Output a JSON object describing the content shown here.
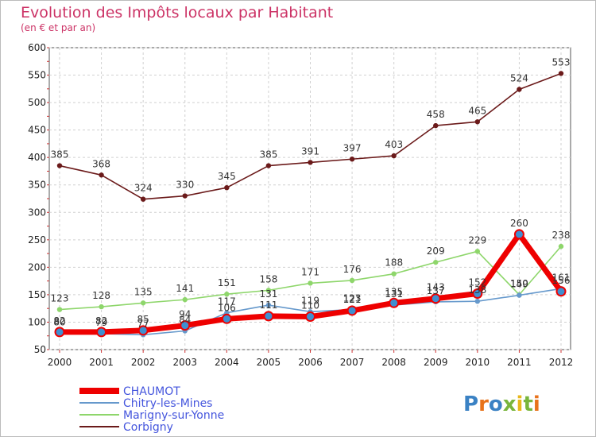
{
  "chart_data": {
    "type": "line",
    "title": "Evolution des Impôts locaux par Habitant",
    "subtitle": "(en € et par an)",
    "xlabel": "",
    "ylabel": "",
    "ylim": [
      50,
      600
    ],
    "yticks": [
      "50",
      "100",
      "150",
      "200",
      "250",
      "300",
      "350",
      "400",
      "450",
      "500",
      "550",
      "600"
    ],
    "categories": [
      "2000",
      "2001",
      "2002",
      "2003",
      "2004",
      "2005",
      "2006",
      "2007",
      "2008",
      "2009",
      "2010",
      "2011",
      "2012"
    ],
    "grid": true,
    "legend_position": "bottom-left",
    "series": [
      {
        "name": "Corbigny",
        "color": "#6b1a1a",
        "values": [
          385,
          368,
          324,
          330,
          345,
          385,
          391,
          397,
          403,
          458,
          465,
          524,
          553
        ],
        "labels": [
          "385",
          "368",
          "324",
          "330",
          "345",
          "385",
          "391",
          "397",
          "403",
          "458",
          "465",
          "524",
          "553"
        ]
      },
      {
        "name": "Marigny-sur-Yonne",
        "color": "#8ed66b",
        "values": [
          123,
          128,
          135,
          141,
          151,
          158,
          171,
          176,
          188,
          209,
          229,
          150,
          238
        ],
        "labels": [
          "123",
          "128",
          "135",
          "141",
          "151",
          "158",
          "171",
          "176",
          "188",
          "209",
          "229",
          "150",
          "238"
        ]
      },
      {
        "name": "Chitry-les-Mines",
        "color": "#6699cc",
        "values": [
          80,
          79,
          77,
          84,
          117,
          131,
          119,
          123,
          131,
          137,
          138,
          149,
          161
        ],
        "labels": [
          "80",
          "79",
          "77",
          "84",
          "117",
          "131",
          "119",
          "123",
          "131",
          "137",
          "138",
          "149",
          "161"
        ]
      },
      {
        "name": "CHAUMOT",
        "color": "#ee0000",
        "values": [
          82,
          82,
          85,
          94,
          106,
          111,
          110,
          121,
          135,
          143,
          152,
          260,
          156
        ],
        "labels": [
          "82",
          "82",
          "85",
          "94",
          "106",
          "111",
          "110",
          "121",
          "135",
          "143",
          "152",
          "260",
          "156"
        ]
      }
    ],
    "legend": [
      "CHAUMOT",
      "Chitry-les-Mines",
      "Marigny-sur-Yonne",
      "Corbigny"
    ],
    "brand": "Proxiti"
  }
}
